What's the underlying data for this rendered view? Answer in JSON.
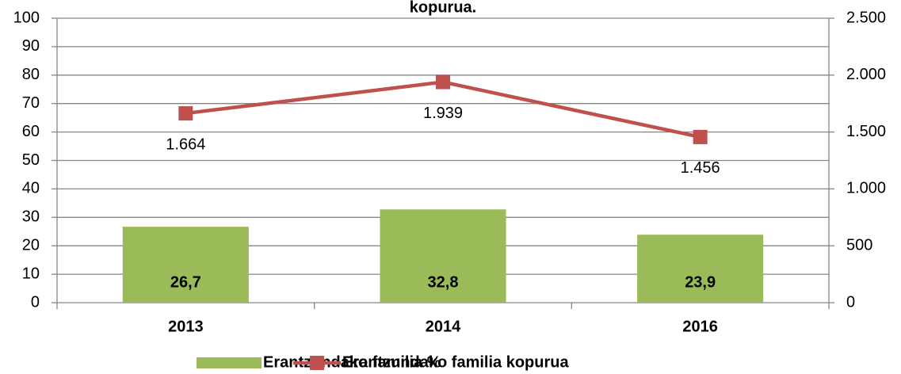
{
  "chart_data": {
    "type": "bar-line",
    "title": "kopurua.",
    "categories": [
      "2013",
      "2014",
      "2016"
    ],
    "series": [
      {
        "name": "Erantzundako familia %",
        "color": "#9bbb59",
        "type": "bar",
        "values": [
          26.7,
          32.8,
          23.9
        ],
        "value_labels": [
          "26,7",
          "32,8",
          "23,9"
        ]
      },
      {
        "name": "Erantzundako familia kopurua",
        "color": "#c0504d",
        "type": "line",
        "axis": "y2",
        "values": [
          1664,
          1939,
          1456
        ],
        "value_labels": [
          "1.664",
          "1.939",
          "1.456"
        ]
      }
    ],
    "ylim": [
      0,
      100
    ],
    "yticks": [
      0,
      10,
      20,
      30,
      40,
      50,
      60,
      70,
      80,
      90,
      100
    ],
    "y2lim": [
      0,
      2500
    ],
    "y2ticks": [
      0,
      500,
      {
        "value": 1000,
        "label": "1.000"
      },
      {
        "value": 1500,
        "label": "1.500"
      },
      {
        "value": 2000,
        "label": "2.000"
      },
      {
        "value": 2500,
        "label": "2.500"
      }
    ],
    "grid": true,
    "legend": "bottom"
  }
}
